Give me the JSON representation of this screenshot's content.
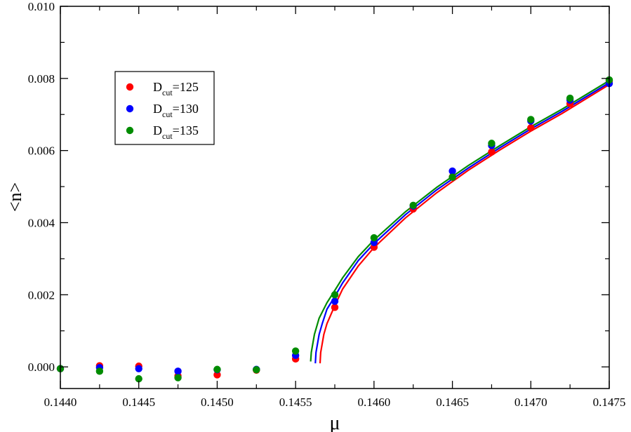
{
  "chart_data": {
    "type": "scatter",
    "xlabel": "μ",
    "ylabel": "<n>",
    "xlim": [
      0.144,
      0.1475
    ],
    "ylim": [
      -0.0006,
      0.01
    ],
    "xticks": [
      "0.1440",
      "0.1445",
      "0.1450",
      "0.1455",
      "0.1460",
      "0.1465",
      "0.1470",
      "0.1475"
    ],
    "yticks": [
      "0.000",
      "0.002",
      "0.004",
      "0.006",
      "0.008",
      "0.010"
    ],
    "grid": false,
    "legend_position": "top-left",
    "series": [
      {
        "name": "125",
        "label_main": "D",
        "label_sub": "cut",
        "label_tail": "=125",
        "color": "#ff0000",
        "points": [
          [
            0.144,
            -5e-05
          ],
          [
            0.14425,
            3e-05
          ],
          [
            0.1445,
            2e-05
          ],
          [
            0.14475,
            -0.00025
          ],
          [
            0.145,
            -0.00022
          ],
          [
            0.14525,
            -9e-05
          ],
          [
            0.1455,
            0.00022
          ],
          [
            0.14575,
            0.00165
          ],
          [
            0.146,
            0.00332
          ],
          [
            0.14625,
            0.00438
          ],
          [
            0.1465,
            0.00527
          ],
          [
            0.14675,
            0.00596
          ],
          [
            0.147,
            0.00663
          ],
          [
            0.14725,
            0.0073
          ],
          [
            0.1475,
            0.00793
          ]
        ],
        "fit": [
          [
            0.145656,
            0.0001
          ],
          [
            0.14566,
            0.0004
          ],
          [
            0.14568,
            0.0009
          ],
          [
            0.1457,
            0.0012
          ],
          [
            0.14575,
            0.0017
          ],
          [
            0.1458,
            0.00216
          ],
          [
            0.1459,
            0.0028
          ],
          [
            0.146,
            0.00331
          ],
          [
            0.1462,
            0.00413
          ],
          [
            0.1464,
            0.00483
          ],
          [
            0.1466,
            0.00545
          ],
          [
            0.1468,
            0.00601
          ],
          [
            0.147,
            0.00654
          ],
          [
            0.1472,
            0.00703
          ],
          [
            0.1475,
            0.00783
          ]
        ]
      },
      {
        "name": "130",
        "label_main": "D",
        "label_sub": "cut",
        "label_tail": "=130",
        "color": "#0000ff",
        "points": [
          [
            0.144,
            -5e-05
          ],
          [
            0.14425,
            -2e-05
          ],
          [
            0.1445,
            -5e-05
          ],
          [
            0.14475,
            -0.00012
          ],
          [
            0.145,
            -8e-05
          ],
          [
            0.14525,
            -7e-05
          ],
          [
            0.1455,
            0.00032
          ],
          [
            0.14575,
            0.00182
          ],
          [
            0.146,
            0.00345
          ],
          [
            0.14625,
            0.00446
          ],
          [
            0.1465,
            0.00543
          ],
          [
            0.14675,
            0.00614
          ],
          [
            0.147,
            0.00682
          ],
          [
            0.14725,
            0.0074
          ],
          [
            0.1475,
            0.00786
          ]
        ],
        "fit": [
          [
            0.145626,
            0.0001
          ],
          [
            0.14563,
            0.0004
          ],
          [
            0.14565,
            0.0009
          ],
          [
            0.14567,
            0.0012
          ],
          [
            0.1457,
            0.0016
          ],
          [
            0.14575,
            0.00195
          ],
          [
            0.1458,
            0.00233
          ],
          [
            0.1459,
            0.00295
          ],
          [
            0.146,
            0.00342
          ],
          [
            0.1462,
            0.00422
          ],
          [
            0.1464,
            0.00491
          ],
          [
            0.1466,
            0.00551
          ],
          [
            0.1468,
            0.00607
          ],
          [
            0.147,
            0.0066
          ],
          [
            0.1472,
            0.00709
          ],
          [
            0.1475,
            0.00788
          ]
        ]
      },
      {
        "name": "135",
        "label_main": "D",
        "label_sub": "cut",
        "label_tail": "=135",
        "color": "#008c00",
        "points": [
          [
            0.144,
            -5e-05
          ],
          [
            0.14425,
            -0.00012
          ],
          [
            0.1445,
            -0.00033
          ],
          [
            0.14475,
            -0.0003
          ],
          [
            0.145,
            -7e-05
          ],
          [
            0.14525,
            -8e-05
          ],
          [
            0.1455,
            0.00044
          ],
          [
            0.14575,
            0.002
          ],
          [
            0.146,
            0.00358
          ],
          [
            0.14625,
            0.00448
          ],
          [
            0.1465,
            0.00526
          ],
          [
            0.14675,
            0.0062
          ],
          [
            0.147,
            0.00686
          ],
          [
            0.14725,
            0.00745
          ],
          [
            0.1475,
            0.00796
          ]
        ],
        "fit": [
          [
            0.145596,
            0.00015
          ],
          [
            0.1456,
            0.0004
          ],
          [
            0.14562,
            0.0009
          ],
          [
            0.14565,
            0.00135
          ],
          [
            0.1457,
            0.00178
          ],
          [
            0.14575,
            0.00212
          ],
          [
            0.1458,
            0.00247
          ],
          [
            0.1459,
            0.00306
          ],
          [
            0.146,
            0.00352
          ],
          [
            0.1462,
            0.0043
          ],
          [
            0.1464,
            0.00498
          ],
          [
            0.1466,
            0.00558
          ],
          [
            0.1468,
            0.00613
          ],
          [
            0.147,
            0.00666
          ],
          [
            0.1472,
            0.00715
          ],
          [
            0.1475,
            0.00794
          ]
        ]
      }
    ]
  }
}
